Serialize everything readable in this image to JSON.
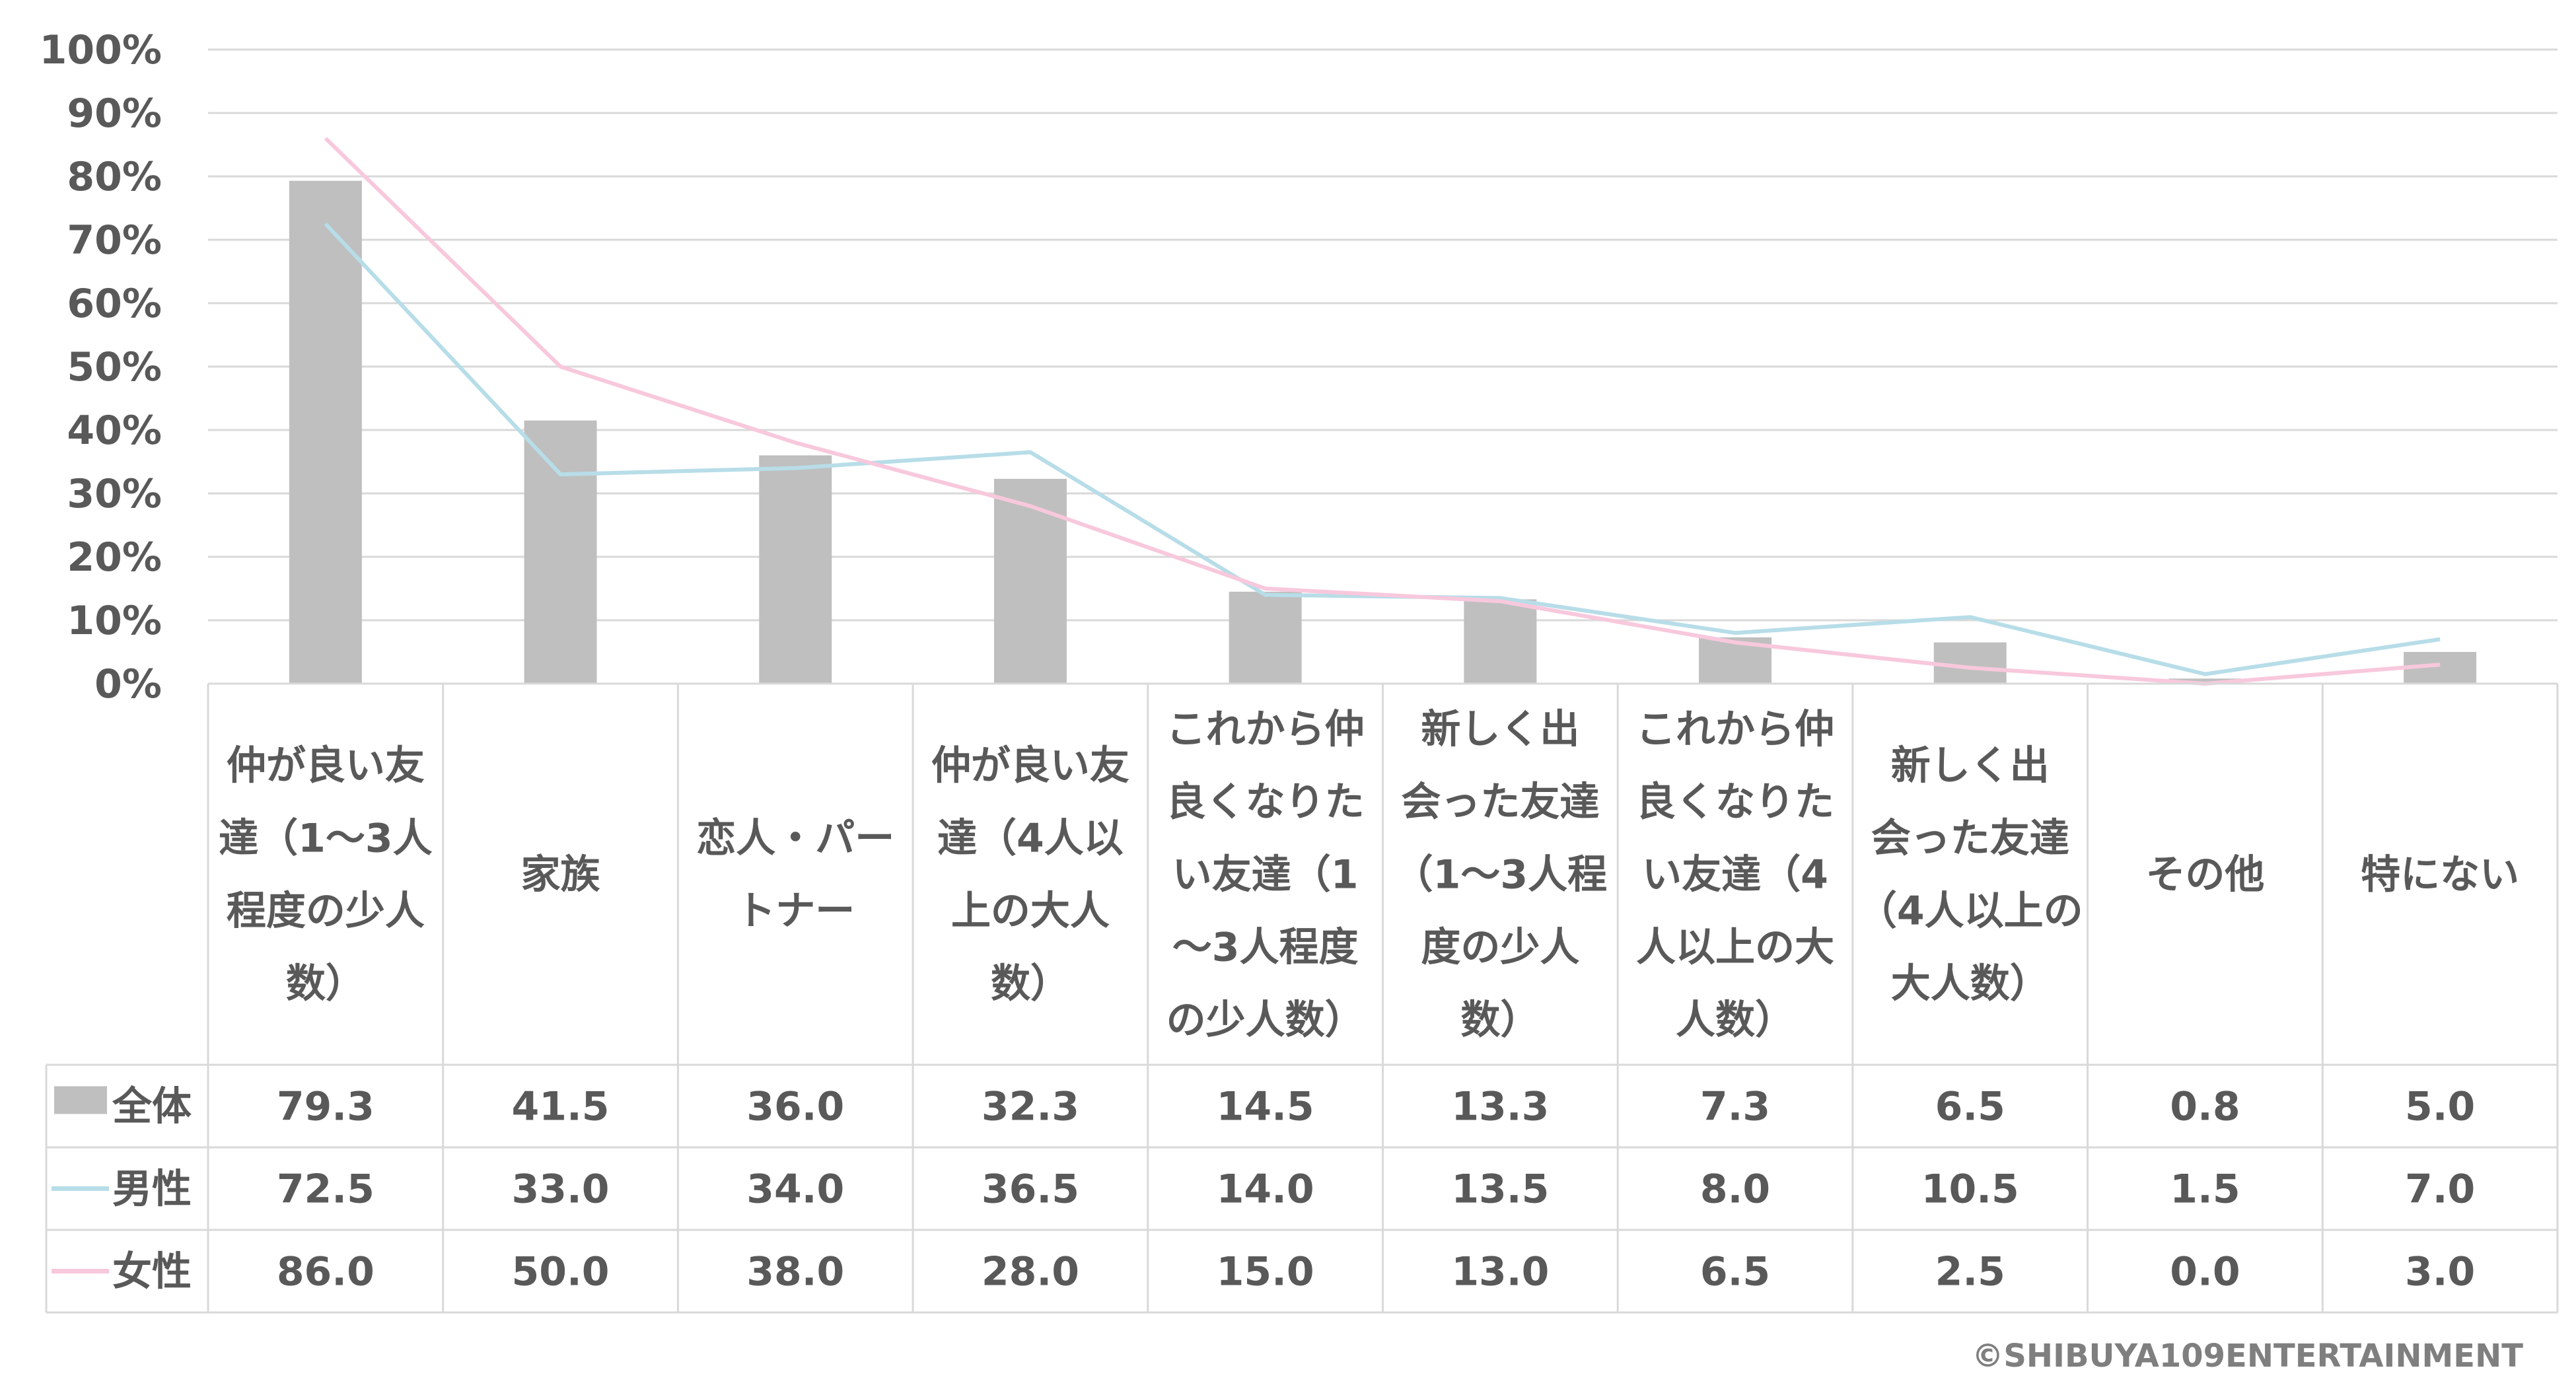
{
  "chart_data": {
    "type": "bar",
    "title": "",
    "xlabel": "",
    "ylabel": "",
    "ylim": [
      0,
      100
    ],
    "ytick_format": "%",
    "yticks": [
      "0%",
      "10%",
      "20%",
      "30%",
      "40%",
      "50%",
      "60%",
      "70%",
      "80%",
      "90%",
      "100%"
    ],
    "grid": true,
    "legend_placement": "data-table",
    "categories": [
      "仲が良い友達（1〜3人程度の少人数）",
      "家族",
      "恋人・パートナー",
      "仲が良い友達（4人以上の大人数）",
      "これから仲良くなりたい友達（1〜3人程度の少人数）",
      "新しく出会った友達（1〜3人程度の少人数）",
      "これから仲良くなりたい友達（4人以上の大人数）",
      "新しく出会った友達（4人以上の大人数）",
      "その他",
      "特にない"
    ],
    "category_lines": [
      [
        "仲が良い友",
        "達（1〜3人",
        "程度の少人",
        "数）"
      ],
      [
        "家族"
      ],
      [
        "恋人・パー",
        "トナー"
      ],
      [
        "仲が良い友",
        "達（4人以",
        "上の大人",
        "数）"
      ],
      [
        "これから仲",
        "良くなりた",
        "い友達（1",
        "〜3人程度",
        "の少人数）"
      ],
      [
        "新しく出",
        "会った友達",
        "（1〜3人程",
        "度の少人",
        "数）"
      ],
      [
        "これから仲",
        "良くなりた",
        "い友達（4",
        "人以上の大",
        "人数）"
      ],
      [
        "新しく出",
        "会った友達",
        "（4人以上の",
        "大人数）"
      ],
      [
        "その他"
      ],
      [
        "特にない"
      ]
    ],
    "series": [
      {
        "name": "全体",
        "type": "bar",
        "color": "#bfbfbf",
        "values": [
          79.3,
          41.5,
          36.0,
          32.3,
          14.5,
          13.3,
          7.3,
          6.5,
          0.8,
          5.0
        ],
        "labels": [
          "79.3",
          "41.5",
          "36.0",
          "32.3",
          "14.5",
          "13.3",
          "7.3",
          "6.5",
          "0.8",
          "5.0"
        ]
      },
      {
        "name": "男性",
        "type": "line",
        "color": "#b7dde8",
        "values": [
          72.5,
          33.0,
          34.0,
          36.5,
          14.0,
          13.5,
          8.0,
          10.5,
          1.5,
          7.0
        ],
        "labels": [
          "72.5",
          "33.0",
          "34.0",
          "36.5",
          "14.0",
          "13.5",
          "8.0",
          "10.5",
          "1.5",
          "7.0"
        ]
      },
      {
        "name": "女性",
        "type": "line",
        "color": "#f8c8dc",
        "values": [
          86.0,
          50.0,
          38.0,
          28.0,
          15.0,
          13.0,
          6.5,
          2.5,
          0.0,
          3.0
        ],
        "labels": [
          "86.0",
          "50.0",
          "38.0",
          "28.0",
          "15.0",
          "13.0",
          "6.5",
          "2.5",
          "0.0",
          "3.0"
        ]
      }
    ]
  },
  "copyright": "©SHIBUYA109ENTERTAINMENT"
}
